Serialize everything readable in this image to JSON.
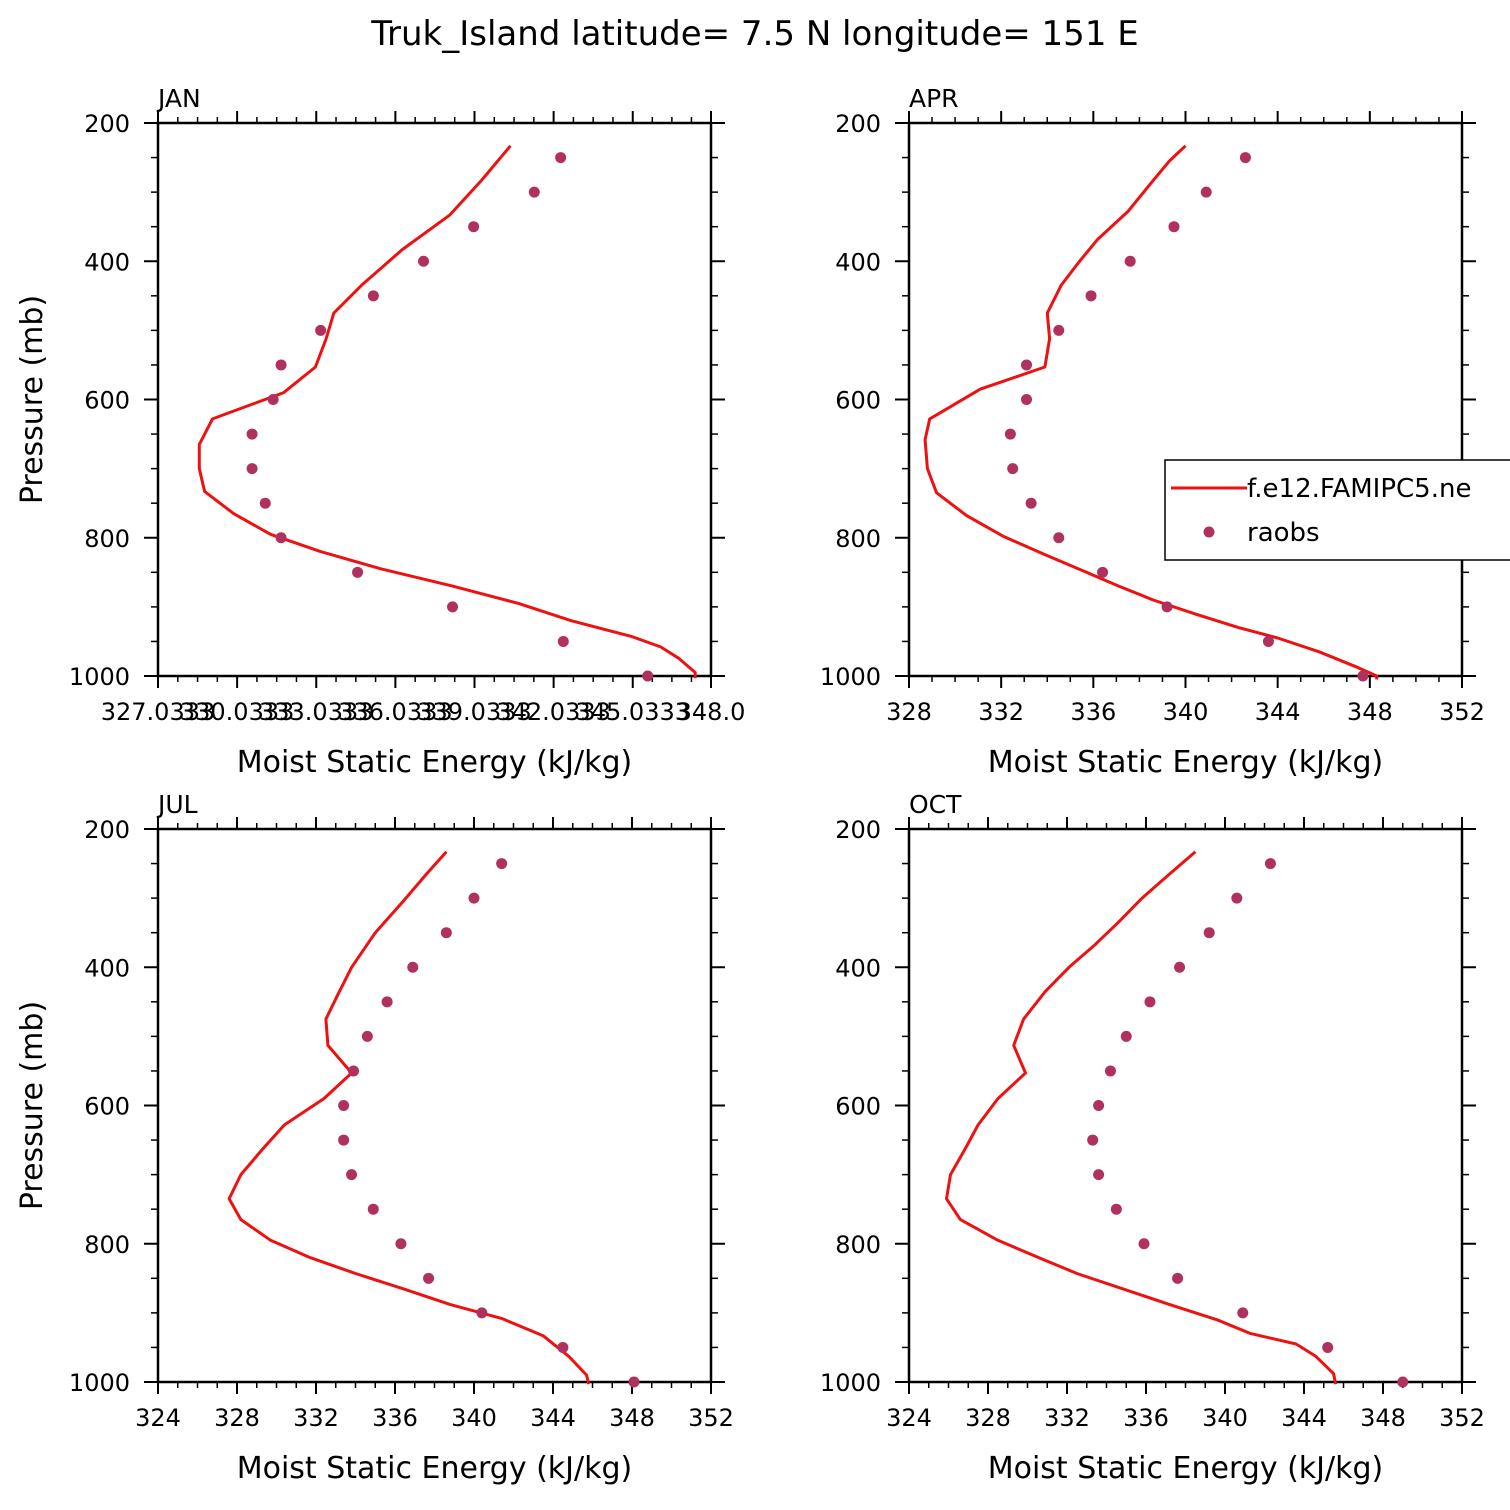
{
  "title": "Truk_Island  latitude= 7.5 N longitude= 151 E",
  "colors": {
    "model": "#ee1111",
    "obs": "#b03060",
    "axis": "#000000"
  },
  "legend": {
    "panel": 1,
    "entries": [
      {
        "label": "f.e12.FAMIPC5.ne",
        "kind": "line"
      },
      {
        "label": "raobs",
        "kind": "marker"
      }
    ]
  },
  "chart_data": [
    {
      "type": "line",
      "label": "JAN",
      "xlabel": "Moist Static Energy (kJ/kg)",
      "ylabel": "Pressure (mb)",
      "xlim": [
        327.0333,
        348.0
      ],
      "ylim": [
        200,
        1000
      ],
      "y_reversed": true,
      "xticks": [
        327.0333,
        330.0333,
        333.0333,
        336.0333,
        339.0333,
        342.0333,
        345.0333,
        348.0
      ],
      "xtick_labels": [
        "327.0333",
        "330.0333",
        "333.0333",
        "336.0333",
        "339.0333",
        "342.0333",
        "345.0333",
        "348.0"
      ],
      "yticks": [
        200,
        400,
        600,
        800,
        1000
      ],
      "ytick_labels": [
        "200",
        "400",
        "600",
        "800",
        "1000"
      ],
      "series": [
        {
          "name": "f.e12.FAMIPC5.ne",
          "kind": "line",
          "points": [
            [
              340.4,
              233
            ],
            [
              339.3,
              283
            ],
            [
              338.1,
              333
            ],
            [
              336.3,
              383
            ],
            [
              334.8,
              433
            ],
            [
              333.7,
              475
            ],
            [
              333.4,
              513
            ],
            [
              333.0,
              553
            ],
            [
              331.8,
              590
            ],
            [
              329.1,
              628
            ],
            [
              328.6,
              665
            ],
            [
              328.6,
              700
            ],
            [
              328.8,
              733
            ],
            [
              329.9,
              765
            ],
            [
              331.3,
              795
            ],
            [
              333.2,
              820
            ],
            [
              335.5,
              845
            ],
            [
              338.2,
              870
            ],
            [
              340.7,
              895
            ],
            [
              342.7,
              920
            ],
            [
              345.0,
              943
            ],
            [
              346.1,
              958
            ],
            [
              346.8,
              975
            ],
            [
              347.4,
              995
            ],
            [
              347.4,
              1003
            ]
          ]
        },
        {
          "name": "raobs",
          "kind": "scatter",
          "points": [
            [
              342.3,
              250
            ],
            [
              341.3,
              300
            ],
            [
              339.0,
              350
            ],
            [
              337.1,
              400
            ],
            [
              335.2,
              450
            ],
            [
              333.2,
              500
            ],
            [
              331.7,
              550
            ],
            [
              331.4,
              600
            ],
            [
              330.6,
              650
            ],
            [
              330.6,
              700
            ],
            [
              331.1,
              750
            ],
            [
              331.7,
              800
            ],
            [
              334.6,
              850
            ],
            [
              338.2,
              900
            ],
            [
              342.4,
              950
            ],
            [
              345.6,
              1000
            ]
          ]
        }
      ]
    },
    {
      "type": "line",
      "label": "APR",
      "xlabel": "Moist Static Energy (kJ/kg)",
      "ylabel": "",
      "xlim": [
        328,
        352
      ],
      "ylim": [
        200,
        1000
      ],
      "y_reversed": true,
      "xticks": [
        328,
        332,
        336,
        340,
        344,
        348,
        352
      ],
      "xtick_labels": [
        "328",
        "332",
        "336",
        "340",
        "344",
        "348",
        "352"
      ],
      "yticks": [
        200,
        400,
        600,
        800,
        1000
      ],
      "ytick_labels": [
        "200",
        "400",
        "600",
        "800",
        "1000"
      ],
      "series": [
        {
          "name": "f.e12.FAMIPC5.ne",
          "kind": "line",
          "points": [
            [
              340.0,
              233
            ],
            [
              339.3,
              255
            ],
            [
              338.6,
              283
            ],
            [
              337.5,
              328
            ],
            [
              336.2,
              368
            ],
            [
              335.4,
              400
            ],
            [
              334.6,
              435
            ],
            [
              334.0,
              475
            ],
            [
              334.1,
              512
            ],
            [
              333.9,
              553
            ],
            [
              331.1,
              585
            ],
            [
              328.9,
              628
            ],
            [
              328.7,
              658
            ],
            [
              328.8,
              700
            ],
            [
              329.2,
              735
            ],
            [
              330.5,
              768
            ],
            [
              332.1,
              798
            ],
            [
              333.8,
              823
            ],
            [
              335.7,
              850
            ],
            [
              337.1,
              870
            ],
            [
              338.6,
              890
            ],
            [
              340.4,
              910
            ],
            [
              342.3,
              930
            ],
            [
              344.0,
              945
            ],
            [
              345.8,
              965
            ],
            [
              347.5,
              988
            ],
            [
              348.3,
              1000
            ],
            [
              348.3,
              1005
            ]
          ]
        },
        {
          "name": "raobs",
          "kind": "scatter",
          "points": [
            [
              342.6,
              250
            ],
            [
              340.9,
              300
            ],
            [
              339.5,
              350
            ],
            [
              337.6,
              400
            ],
            [
              335.9,
              450
            ],
            [
              334.5,
              500
            ],
            [
              333.1,
              550
            ],
            [
              333.1,
              600
            ],
            [
              332.4,
              650
            ],
            [
              332.5,
              700
            ],
            [
              333.3,
              750
            ],
            [
              334.5,
              800
            ],
            [
              336.4,
              850
            ],
            [
              339.2,
              900
            ],
            [
              343.6,
              950
            ],
            [
              347.7,
              1000
            ]
          ]
        }
      ]
    },
    {
      "type": "line",
      "label": "JUL",
      "xlabel": "Moist Static Energy (kJ/kg)",
      "ylabel": "Pressure (mb)",
      "xlim": [
        324,
        352
      ],
      "ylim": [
        200,
        1000
      ],
      "y_reversed": true,
      "xticks": [
        324,
        328,
        332,
        336,
        340,
        344,
        348,
        352
      ],
      "xtick_labels": [
        "324",
        "328",
        "332",
        "336",
        "340",
        "344",
        "348",
        "352"
      ],
      "yticks": [
        200,
        400,
        600,
        800,
        1000
      ],
      "ytick_labels": [
        "200",
        "400",
        "600",
        "800",
        "1000"
      ],
      "series": [
        {
          "name": "f.e12.FAMIPC5.ne",
          "kind": "line",
          "points": [
            [
              338.6,
              233
            ],
            [
              337.6,
              265
            ],
            [
              336.4,
              305
            ],
            [
              335.0,
              350
            ],
            [
              333.8,
              400
            ],
            [
              333.1,
              440
            ],
            [
              332.5,
              475
            ],
            [
              332.6,
              513
            ],
            [
              333.8,
              553
            ],
            [
              332.4,
              590
            ],
            [
              330.4,
              628
            ],
            [
              329.3,
              663
            ],
            [
              328.2,
              700
            ],
            [
              327.6,
              735
            ],
            [
              328.2,
              765
            ],
            [
              329.7,
              795
            ],
            [
              331.7,
              820
            ],
            [
              334.0,
              843
            ],
            [
              336.4,
              865
            ],
            [
              338.8,
              888
            ],
            [
              341.4,
              908
            ],
            [
              343.5,
              933
            ],
            [
              344.8,
              963
            ],
            [
              345.7,
              990
            ],
            [
              345.8,
              1003
            ]
          ]
        },
        {
          "name": "raobs",
          "kind": "scatter",
          "points": [
            [
              341.4,
              250
            ],
            [
              340.0,
              300
            ],
            [
              338.6,
              350
            ],
            [
              336.9,
              400
            ],
            [
              335.6,
              450
            ],
            [
              334.6,
              500
            ],
            [
              333.9,
              550
            ],
            [
              333.4,
              600
            ],
            [
              333.4,
              650
            ],
            [
              333.8,
              700
            ],
            [
              334.9,
              750
            ],
            [
              336.3,
              800
            ],
            [
              337.7,
              850
            ],
            [
              340.4,
              900
            ],
            [
              344.5,
              950
            ],
            [
              348.1,
              1000
            ]
          ]
        }
      ]
    },
    {
      "type": "line",
      "label": "OCT",
      "xlabel": "Moist Static Energy (kJ/kg)",
      "ylabel": "",
      "xlim": [
        324,
        352
      ],
      "ylim": [
        200,
        1000
      ],
      "y_reversed": true,
      "xticks": [
        324,
        328,
        332,
        336,
        340,
        344,
        348,
        352
      ],
      "xtick_labels": [
        "324",
        "328",
        "332",
        "336",
        "340",
        "344",
        "348",
        "352"
      ],
      "yticks": [
        200,
        400,
        600,
        800,
        1000
      ],
      "ytick_labels": [
        "200",
        "400",
        "600",
        "800",
        "1000"
      ],
      "series": [
        {
          "name": "f.e12.FAMIPC5.ne",
          "kind": "line",
          "points": [
            [
              338.5,
              233
            ],
            [
              337.2,
              265
            ],
            [
              335.8,
              300
            ],
            [
              334.6,
              335
            ],
            [
              333.4,
              368
            ],
            [
              332.1,
              400
            ],
            [
              330.9,
              435
            ],
            [
              329.8,
              475
            ],
            [
              329.3,
              513
            ],
            [
              329.9,
              553
            ],
            [
              328.5,
              590
            ],
            [
              327.5,
              628
            ],
            [
              326.8,
              665
            ],
            [
              326.1,
              700
            ],
            [
              325.9,
              735
            ],
            [
              326.6,
              765
            ],
            [
              328.5,
              795
            ],
            [
              330.4,
              818
            ],
            [
              332.5,
              843
            ],
            [
              334.8,
              865
            ],
            [
              337.2,
              888
            ],
            [
              339.6,
              910
            ],
            [
              341.3,
              930
            ],
            [
              343.6,
              945
            ],
            [
              344.6,
              963
            ],
            [
              345.5,
              988
            ],
            [
              345.6,
              1003
            ]
          ]
        },
        {
          "name": "raobs",
          "kind": "scatter",
          "points": [
            [
              342.3,
              250
            ],
            [
              340.6,
              300
            ],
            [
              339.2,
              350
            ],
            [
              337.7,
              400
            ],
            [
              336.2,
              450
            ],
            [
              335.0,
              500
            ],
            [
              334.2,
              550
            ],
            [
              333.6,
              600
            ],
            [
              333.3,
              650
            ],
            [
              333.6,
              700
            ],
            [
              334.5,
              750
            ],
            [
              335.9,
              800
            ],
            [
              337.6,
              850
            ],
            [
              340.9,
              900
            ],
            [
              345.2,
              950
            ],
            [
              349.0,
              1000
            ]
          ]
        }
      ]
    }
  ]
}
